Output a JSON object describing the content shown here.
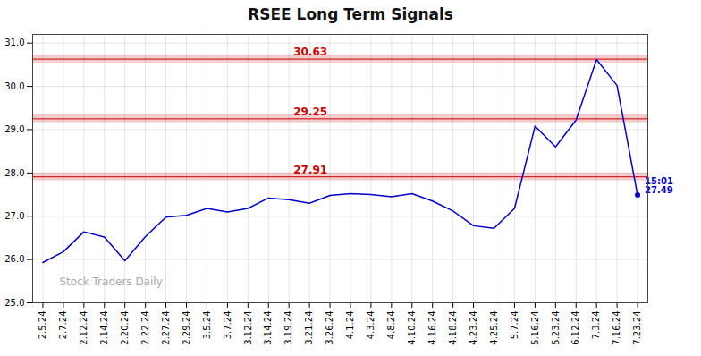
{
  "chart_data": {
    "type": "line",
    "title": "RSEE Long Term Signals",
    "categories": [
      "2.5.24",
      "2.7.24",
      "2.12.24",
      "2.14.24",
      "2.20.24",
      "2.22.24",
      "2.27.24",
      "2.29.24",
      "3.5.24",
      "3.7.24",
      "3.12.24",
      "3.14.24",
      "3.19.24",
      "3.21.24",
      "3.26.24",
      "4.1.24",
      "4.3.24",
      "4.8.24",
      "4.10.24",
      "4.16.24",
      "4.18.24",
      "4.23.24",
      "4.25.24",
      "5.7.24",
      "5.16.24",
      "5.23.24",
      "6.12.24",
      "7.3.24",
      "7.16.24",
      "7.23.24"
    ],
    "values": [
      25.93,
      26.18,
      26.64,
      26.52,
      25.97,
      26.53,
      26.98,
      27.02,
      27.18,
      27.1,
      27.18,
      27.42,
      27.38,
      27.3,
      27.48,
      27.52,
      27.5,
      27.45,
      27.52,
      27.35,
      27.12,
      26.78,
      26.72,
      27.18,
      29.08,
      28.6,
      29.22,
      30.62,
      30.02,
      27.49
    ],
    "color": "#0000cc",
    "ylim": [
      25.0,
      31.2
    ],
    "yticks": [
      25,
      26,
      27,
      28,
      29,
      30,
      31
    ],
    "grid": true,
    "hlines": [
      {
        "value": 30.63,
        "label": "30.63",
        "band_width": 0.09,
        "color": "#cc0000"
      },
      {
        "value": 29.25,
        "label": "29.25",
        "band_width": 0.09,
        "color": "#cc0000"
      },
      {
        "value": 27.91,
        "label": "27.91",
        "band_width": 0.09,
        "color": "#cc0000"
      }
    ],
    "annotations": [
      "15:01\n27.49"
    ],
    "watermark": "Stock Traders Daily"
  }
}
